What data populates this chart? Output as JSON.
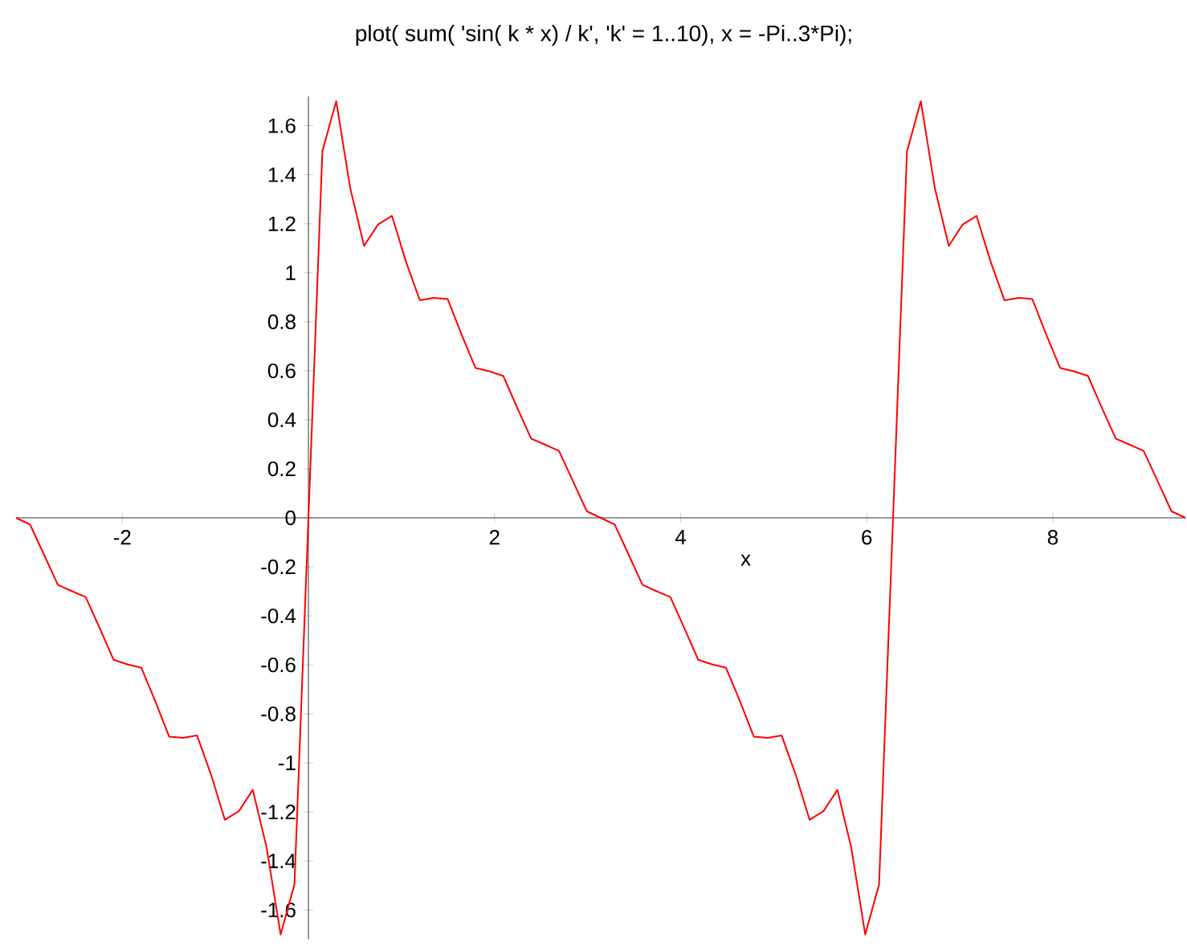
{
  "chart_data": {
    "type": "line",
    "title": "plot( sum( 'sin( k * x) / k', 'k' = 1..10), x = -Pi..3*Pi);",
    "xlabel": "x",
    "x": [
      -3.142,
      -2.992,
      -2.842,
      -2.693,
      -2.543,
      -2.394,
      -2.244,
      -2.094,
      -1.945,
      -1.795,
      -1.646,
      -1.496,
      -1.346,
      -1.197,
      -1.047,
      -0.898,
      -0.748,
      -0.598,
      -0.449,
      -0.299,
      -0.15,
      0,
      0.15,
      0.299,
      0.449,
      0.598,
      0.748,
      0.898,
      1.047,
      1.197,
      1.346,
      1.496,
      1.646,
      1.795,
      1.945,
      2.094,
      2.244,
      2.394,
      2.543,
      2.693,
      2.842,
      2.992,
      3.142,
      3.291,
      3.441,
      3.59,
      3.74,
      3.89,
      4.039,
      4.189,
      4.338,
      4.488,
      4.638,
      4.787,
      4.937,
      5.086,
      5.236,
      5.386,
      5.535,
      5.685,
      5.834,
      5.984,
      6.133,
      6.283,
      6.433,
      6.582,
      6.732,
      6.882,
      7.031,
      7.181,
      7.33,
      7.48,
      7.63,
      7.779,
      7.929,
      8.078,
      8.228,
      8.378,
      8.527,
      8.677,
      8.826,
      8.976,
      9.126,
      9.275,
      9.425
    ],
    "values": [
      0,
      -0.027,
      -0.15,
      -0.273,
      -0.299,
      -0.323,
      -0.449,
      -0.579,
      -0.598,
      -0.612,
      -0.748,
      -0.893,
      -0.898,
      -0.888,
      -1.047,
      -1.232,
      -1.197,
      -1.11,
      -1.346,
      -1.7,
      -1.496,
      0,
      1.496,
      1.7,
      1.346,
      1.11,
      1.197,
      1.232,
      1.047,
      0.888,
      0.898,
      0.893,
      0.748,
      0.612,
      0.598,
      0.579,
      0.449,
      0.323,
      0.299,
      0.273,
      0.15,
      0.027,
      0,
      -0.027,
      -0.15,
      -0.273,
      -0.299,
      -0.323,
      -0.449,
      -0.579,
      -0.598,
      -0.612,
      -0.748,
      -0.893,
      -0.898,
      -0.888,
      -1.047,
      -1.232,
      -1.197,
      -1.11,
      -1.346,
      -1.7,
      -1.496,
      0,
      1.496,
      1.7,
      1.346,
      1.11,
      1.197,
      1.232,
      1.047,
      0.888,
      0.898,
      0.893,
      0.748,
      0.612,
      0.598,
      0.579,
      0.449,
      0.323,
      0.299,
      0.273,
      0.15,
      0.027,
      0
    ],
    "color": "#ff0000",
    "marker": "none",
    "line_style": "solid",
    "grid": false,
    "xlim": [
      -3.142,
      9.425
    ],
    "ylim": [
      -1.72,
      1.72
    ],
    "xticks": [
      -2,
      2,
      4,
      6,
      8
    ],
    "yticks": [
      -1.6,
      -1.4,
      -1.2,
      -1,
      -0.8,
      -0.6,
      -0.4,
      -0.2,
      0,
      0.2,
      0.4,
      0.6,
      0.8,
      1,
      1.2,
      1.4,
      1.6
    ]
  }
}
